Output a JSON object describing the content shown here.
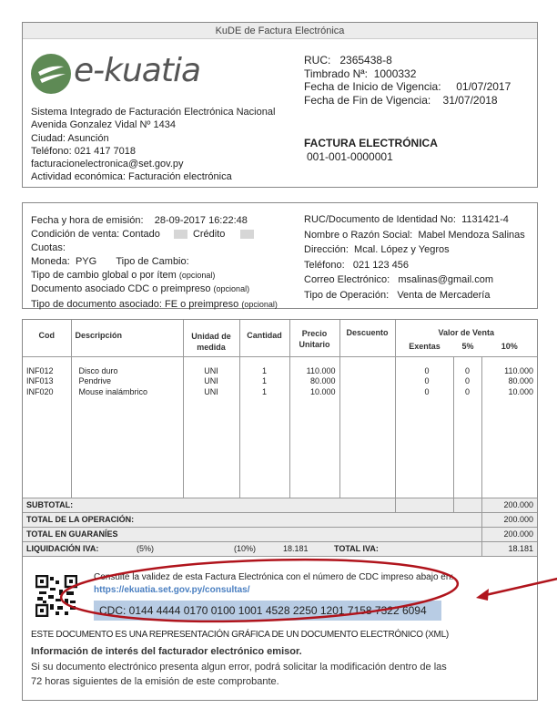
{
  "header": {
    "title": "KuDE de Factura Electrónica",
    "logo_text": "e-kuatia",
    "issuer": [
      "Sistema Integrado de Facturación Electrónica Nacional",
      "Avenida Gonzalez Vidal Nº 1434",
      "Ciudad: Asunción",
      "Teléfono: 021 417 7018",
      "facturacionelectronica@set.gov.py",
      "Actividad económica: Facturación electrónica"
    ],
    "ruc_label": "RUC:",
    "ruc": "2365438-8",
    "timbrado_label": "Timbrado Nª:",
    "timbrado": "1000332",
    "inicio_label": "Fecha de Inicio de Vigencia:",
    "inicio": "01/07/2017",
    "fin_label": "Fecha de Fin de Vigencia:",
    "fin": "31/07/2018",
    "doc_type": "FACTURA ELECTRÓNICA",
    "doc_number": "001-001-0000001",
    "logo_color": "#5e8a55"
  },
  "details": {
    "fecha_label": "Fecha y hora de emisión:",
    "fecha": "28-09-2017 16:22:48",
    "condicion_label": "Condición de venta:",
    "contado": "Contado",
    "credito": "Crédito",
    "cuotas_label": "Cuotas:",
    "moneda_label": "Moneda:",
    "moneda": "PYG",
    "tipo_cambio_label": "Tipo de Cambio:",
    "tc_global": "Tipo de cambio global o por ítem",
    "doc_asoc": "Documento asociado CDC o preimpreso",
    "tipo_doc_label": "Tipo de documento asociado:",
    "tipo_doc": "FE o preimpreso",
    "opcional": "(opcional)",
    "ruc_cli_label": "RUC/Documento de Identidad No:",
    "ruc_cli": "1131421-4",
    "nombre_label": "Nombre o Razón Social:",
    "nombre": "Mabel Mendoza Salinas",
    "dir_label": "Dirección:",
    "dir": "Mcal. López y Yegros",
    "tel_label": "Teléfono:",
    "tel": "021 123 456",
    "correo_label": "Correo Electrónico:",
    "correo": "msalinas@gmail.com",
    "op_label": "Tipo de Operación:",
    "op": "Venta de Mercadería"
  },
  "table": {
    "headers": {
      "cod": "Cod",
      "desc": "Descripción",
      "unidad": "Unidad de medida",
      "cantidad": "Cantidad",
      "precio": "Precio Unitario",
      "descuento": "Descuento",
      "valor": "Valor de Venta",
      "exentas": "Exentas",
      "p5": "5%",
      "p10": "10%"
    },
    "rows": [
      {
        "cod": "INF012",
        "desc": "Disco duro",
        "unidad": "UNI",
        "cantidad": "1",
        "precio": "110.000",
        "exentas": "0",
        "p5": "0",
        "p10": "110.000"
      },
      {
        "cod": "INF013",
        "desc": "Pendrive",
        "unidad": "UNI",
        "cantidad": "1",
        "precio": "80.000",
        "exentas": "0",
        "p5": "0",
        "p10": "80.000"
      },
      {
        "cod": "INF020",
        "desc": "Mouse inalámbrico",
        "unidad": "UNI",
        "cantidad": "1",
        "precio": "10.000",
        "exentas": "0",
        "p5": "0",
        "p10": "10.000"
      }
    ],
    "subtotal_label": "SUBTOTAL:",
    "subtotal": "200.000",
    "total_op_label": "TOTAL DE LA OPERACIÓN:",
    "total_op": "200.000",
    "total_gs_label": "TOTAL EN GUARANÍES",
    "total_gs": "200.000",
    "liq_label": "LIQUIDACIÓN IVA:",
    "liq5": "(5%)",
    "liq10": "(10%)",
    "liq10_val": "18.181",
    "total_iva_label": "TOTAL IVA:",
    "total_iva": "18.181"
  },
  "footer": {
    "consulte": "Consulte la validez de esta Factura Electrónica con el número de CDC impreso abajo en:",
    "url": "https://ekuatia.set.gov.py/consultas/",
    "cdc": "CDC: 0144 4444 0170 0100 1001 4528 2250 1201 7158 7322 6094",
    "xml_note": "ESTE DOCUMENTO ES UNA REPRESENTACIÓN GRÁFICA DE UN DOCUMENTO ELECTRÓNICO (XML)",
    "info_title": "Información de interés del facturador electrónico emisor.",
    "info_1": "Si su documento electrónico presenta algun error, podrá solicitar la modificación dentro de las",
    "info_2": "72 horas siguientes de la emisión de este comprobante.",
    "annotation_color": "#b0141c",
    "cdc_bg": "#b8cce4",
    "link_color": "#4a7fc1"
  }
}
